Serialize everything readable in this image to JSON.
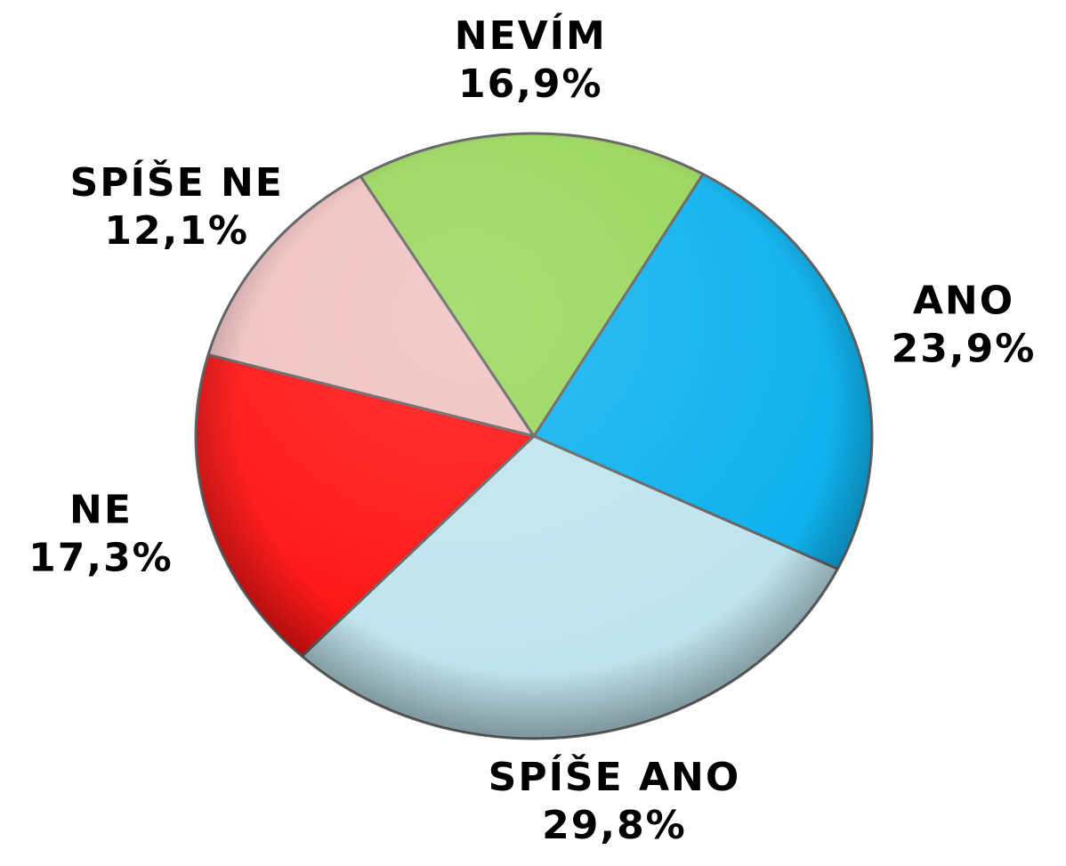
{
  "chart_data": {
    "type": "pie",
    "categories": [
      "ANO",
      "SPÍŠE ANO",
      "NE",
      "SPÍŠE NE",
      "NEVÍM"
    ],
    "values": [
      23.9,
      29.8,
      17.3,
      12.1,
      16.9
    ],
    "value_labels": [
      "23,9%",
      "29,8%",
      "17,3%",
      "12,1%",
      "16,9%"
    ],
    "colors": [
      "#0fb2ee",
      "#c0e4ee",
      "#ff1414",
      "#f0c2c2",
      "#9ad65c"
    ]
  }
}
